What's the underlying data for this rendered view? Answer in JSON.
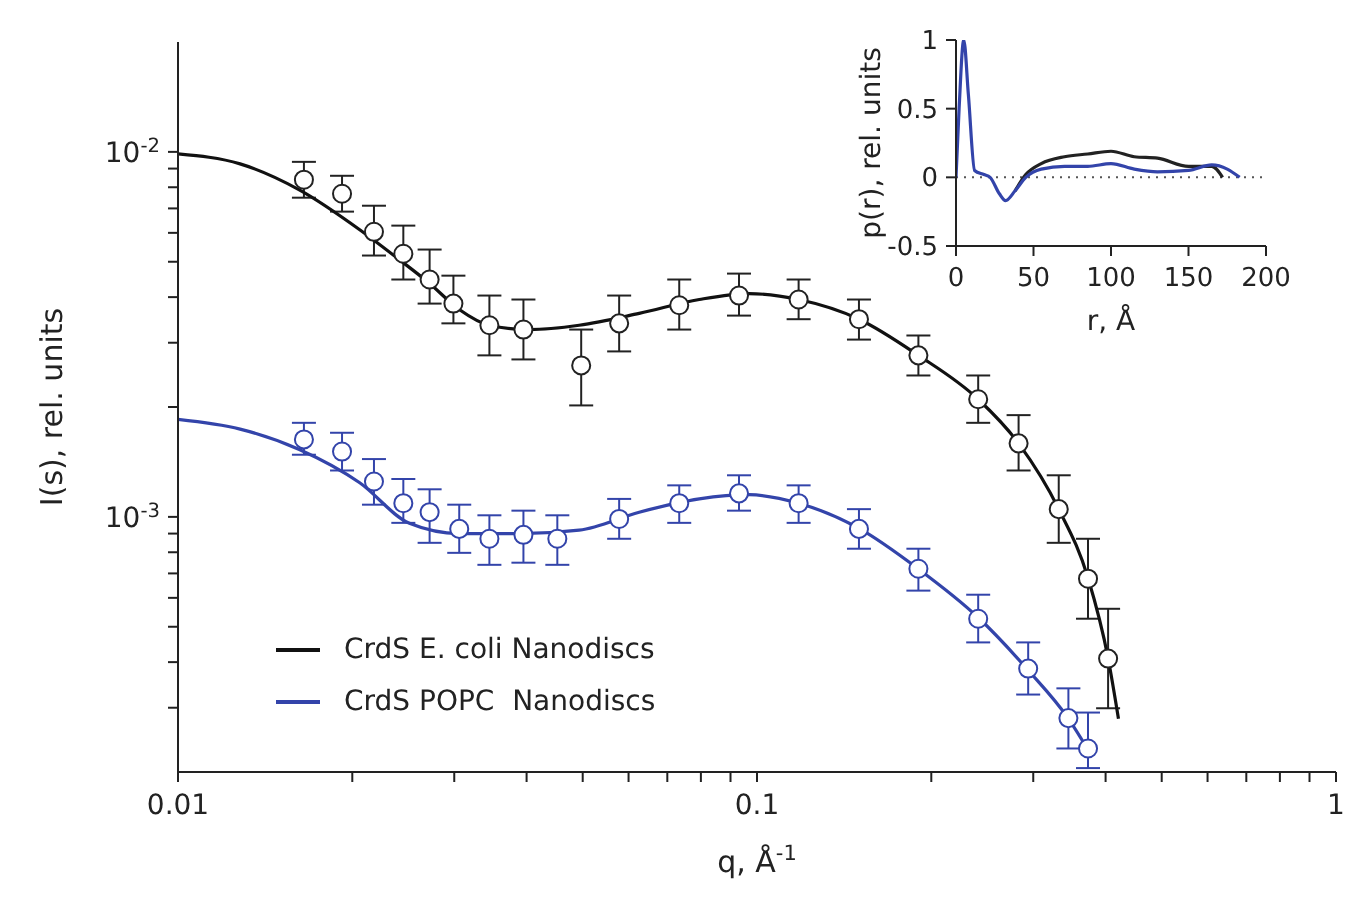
{
  "chart_data": [
    {
      "type": "scatter",
      "xlabel": "q, Å$^{-1}$",
      "ylabel": "I(s), rel. units",
      "log": "xy",
      "legend": "bottom left",
      "xlim": [
        0.01,
        1
      ],
      "xticks": [
        0.01,
        {
          "value": 0.02,
          "label": null
        },
        {
          "value": 0.03,
          "label": null
        },
        {
          "value": 0.04,
          "label": null
        },
        {
          "value": 0.05,
          "label": null
        },
        {
          "value": 0.06,
          "label": null
        },
        {
          "value": 0.07,
          "label": null
        },
        {
          "value": 0.08,
          "label": null
        },
        {
          "value": 0.09,
          "label": null
        },
        0.1,
        {
          "value": 0.2,
          "label": null
        },
        {
          "value": 0.3,
          "label": null
        },
        {
          "value": 0.4,
          "label": null
        },
        {
          "value": 0.5,
          "label": null
        },
        {
          "value": 0.6,
          "label": null
        },
        {
          "value": 0.7,
          "label": null
        },
        {
          "value": 0.8,
          "label": null
        },
        {
          "value": 0.9,
          "label": null
        },
        1
      ],
      "ylim": [
        0.0002,
        0.02
      ],
      "yticks": [
        {
          "value": 0.0003,
          "label": null
        },
        {
          "value": 0.0004,
          "label": null
        },
        {
          "value": 0.0005,
          "label": null
        },
        {
          "value": 0.0006,
          "label": null
        },
        {
          "value": 0.0007,
          "label": null
        },
        {
          "value": 0.0008,
          "label": null
        },
        {
          "value": 0.0009,
          "label": null
        },
        {
          "value": 0.001,
          "label": "10$^{-3}$"
        },
        {
          "value": 0.002,
          "label": null
        },
        {
          "value": 0.003,
          "label": null
        },
        {
          "value": 0.004,
          "label": null
        },
        {
          "value": 0.005,
          "label": null
        },
        {
          "value": 0.006,
          "label": null
        },
        {
          "value": 0.007,
          "label": null
        },
        {
          "value": 0.008,
          "label": null
        },
        {
          "value": 0.009,
          "label": null
        },
        {
          "value": 0.01,
          "label": "10$^{-2}$"
        }
      ],
      "series": [
        {
          "marker": "circle",
          "color": "#222222",
          "x": [
            0.0165,
            0.0192,
            0.0218,
            0.0245,
            0.0272,
            0.0299,
            0.0345,
            0.0395,
            0.0497,
            0.0578,
            0.0734,
            0.0931,
            0.118,
            0.15,
            0.19,
            0.241,
            0.283,
            0.332,
            0.373,
            0.404
          ],
          "values": [
            0.00839,
            0.00768,
            0.00604,
            0.00526,
            0.00447,
            0.00384,
            0.00335,
            0.00326,
            0.0026,
            0.00339,
            0.0038,
            0.00404,
            0.00394,
            0.00348,
            0.00277,
            0.0021,
            0.00159,
            0.00105,
            0.000677,
            0.000409
          ],
          "errors": [
            [
              0.00749,
              0.00939
            ],
            [
              0.00686,
              0.0086
            ],
            [
              0.0052,
              0.00712
            ],
            [
              0.00447,
              0.00628
            ],
            [
              0.00384,
              0.0054
            ],
            [
              0.00339,
              0.00458
            ],
            [
              0.00277,
              0.00404
            ],
            [
              0.0027,
              0.00394
            ],
            [
              0.00202,
              0.00326
            ],
            [
              0.00284,
              0.00404
            ],
            [
              0.00326,
              0.00447
            ],
            [
              0.00356,
              0.00464
            ],
            [
              0.00348,
              0.00447
            ],
            [
              0.00306,
              0.00394
            ],
            [
              0.00244,
              0.00314
            ],
            [
              0.00181,
              0.00244
            ],
            [
              0.00134,
              0.0019
            ],
            [
              0.000849,
              0.0013
            ],
            [
              0.000526,
              0.000871
            ],
            [
              0.000299,
              0.00056
            ]
          ]
        },
        {
          "marker": "circle",
          "color": "#3344aa",
          "x": [
            0.0165,
            0.0192,
            0.0218,
            0.0245,
            0.0272,
            0.0306,
            0.0345,
            0.0395,
            0.0452,
            0.0578,
            0.0734,
            0.0931,
            0.118,
            0.15,
            0.19,
            0.241,
            0.294,
            0.345,
            0.373
          ],
          "values": [
            0.00163,
            0.00151,
            0.00125,
            0.00109,
            0.00103,
            0.000927,
            0.000871,
            0.000893,
            0.000871,
            0.000987,
            0.00109,
            0.00116,
            0.00109,
            0.000927,
            0.000721,
            0.000526,
            0.000384,
            0.000281,
            0.000232
          ],
          "errors": [
            [
              0.00148,
              0.00181
            ],
            [
              0.00134,
              0.0017
            ],
            [
              0.00108,
              0.00144
            ],
            [
              0.000963,
              0.00127
            ],
            [
              0.000849,
              0.00119
            ],
            [
              0.000797,
              0.00108
            ],
            [
              0.000739,
              0.00101
            ],
            [
              0.000749,
              0.00104
            ],
            [
              0.000739,
              0.00101
            ],
            [
              0.000871,
              0.00112
            ],
            [
              0.000963,
              0.00122
            ],
            [
              0.00104,
              0.0013
            ],
            [
              0.000963,
              0.00122
            ],
            [
              0.000818,
              0.00105
            ],
            [
              0.000628,
              0.000818
            ],
            [
              0.000453,
              0.000612
            ],
            [
              0.000326,
              0.000453
            ],
            [
              0.000232,
              0.000339
            ],
            [
              0.000205,
              0.000291
            ]
          ]
        },
        {
          "type": "line",
          "marker": "none",
          "name": "CrdS E. coli Nanodiscs",
          "color": "#111111",
          "x": [
            0.01,
            0.0128,
            0.0162,
            0.0206,
            0.0241,
            0.0272,
            0.0306,
            0.0345,
            0.0405,
            0.0493,
            0.0626,
            0.0795,
            0.0969,
            0.118,
            0.15,
            0.19,
            0.241,
            0.283,
            0.332,
            0.373,
            0.404,
            0.421
          ],
          "values": [
            0.00987,
            0.00927,
            0.00787,
            0.00612,
            0.00507,
            0.00436,
            0.0037,
            0.00335,
            0.00326,
            0.00335,
            0.00361,
            0.00394,
            0.00409,
            0.00394,
            0.00348,
            0.00277,
            0.0021,
            0.00159,
            0.00105,
            0.00068,
            0.00041,
            0.00028
          ]
        },
        {
          "type": "line",
          "marker": "none",
          "name": "CrdS POPC  Nanodiscs",
          "color": "#3344aa",
          "x": [
            0.01,
            0.0128,
            0.0162,
            0.0206,
            0.0251,
            0.0306,
            0.0389,
            0.0493,
            0.0626,
            0.0795,
            0.0969,
            0.118,
            0.15,
            0.19,
            0.241,
            0.294,
            0.345,
            0.373
          ],
          "values": [
            0.00185,
            0.00174,
            0.00153,
            0.00124,
            0.00096,
            0.0009,
            0.0009,
            0.00092,
            0.00103,
            0.00112,
            0.00115,
            0.00109,
            0.00093,
            0.00072,
            0.00053,
            0.00038,
            0.00028,
            0.00023
          ]
        }
      ]
    },
    {
      "type": "line",
      "xlabel": "r, Å",
      "ylabel": "p(r), rel. units",
      "xlim": [
        0,
        200
      ],
      "xticks": [
        0,
        50,
        100,
        150,
        200
      ],
      "ylim": [
        -0.5,
        1
      ],
      "yticks": [
        -0.5,
        0,
        0.5,
        1
      ],
      "ref_lines": [
        {
          "axis": "y",
          "value": 0,
          "color": "#555555",
          "line_style": "dotted"
        }
      ],
      "series": [
        {
          "color": "#222222",
          "x": [
            38,
            45,
            55,
            70,
            85,
            100,
            115,
            130,
            150,
            165,
            172
          ],
          "values": [
            -0.1,
            0.02,
            0.1,
            0.15,
            0.17,
            0.19,
            0.15,
            0.14,
            0.08,
            0.08,
            0
          ]
        },
        {
          "color": "#3344aa",
          "x": [
            0,
            2,
            5,
            8,
            12,
            18,
            22,
            28,
            32,
            38,
            45,
            55,
            70,
            85,
            100,
            115,
            130,
            150,
            165,
            175,
            183
          ],
          "values": [
            0,
            0.5,
            1,
            0.6,
            0.05,
            0.02,
            0,
            -0.12,
            -0.17,
            -0.1,
            0,
            0.06,
            0.08,
            0.08,
            0.1,
            0.06,
            0.04,
            0.05,
            0.09,
            0.06,
            0
          ]
        }
      ]
    }
  ]
}
